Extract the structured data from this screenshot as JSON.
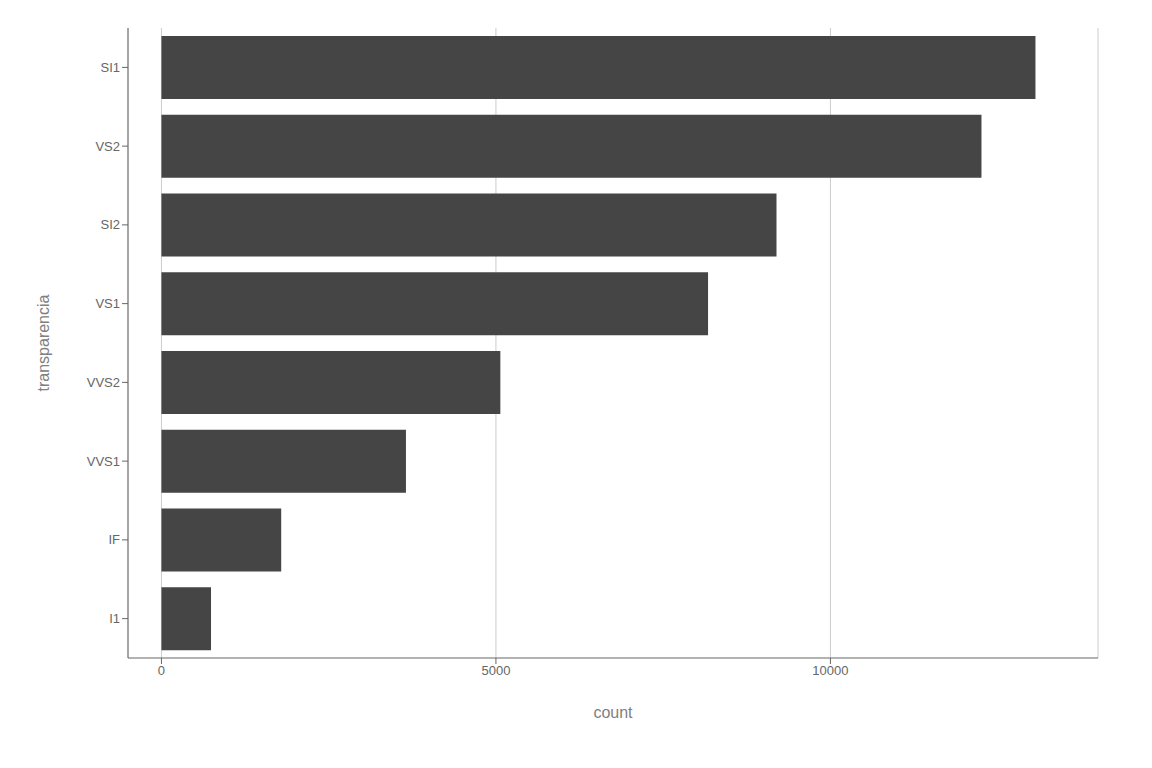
{
  "chart_data": {
    "type": "bar",
    "orientation": "horizontal",
    "categories": [
      "SI1",
      "VS2",
      "SI2",
      "VS1",
      "VVS2",
      "VVS1",
      "IF",
      "I1"
    ],
    "values": [
      13065,
      12258,
      9194,
      8171,
      5066,
      3655,
      1790,
      741
    ],
    "color": "#454545",
    "xlabel": "count",
    "ylabel": "transparencia",
    "xlim": [
      -500,
      14000
    ],
    "xticks": [
      0,
      5000,
      10000
    ],
    "grid": true
  }
}
